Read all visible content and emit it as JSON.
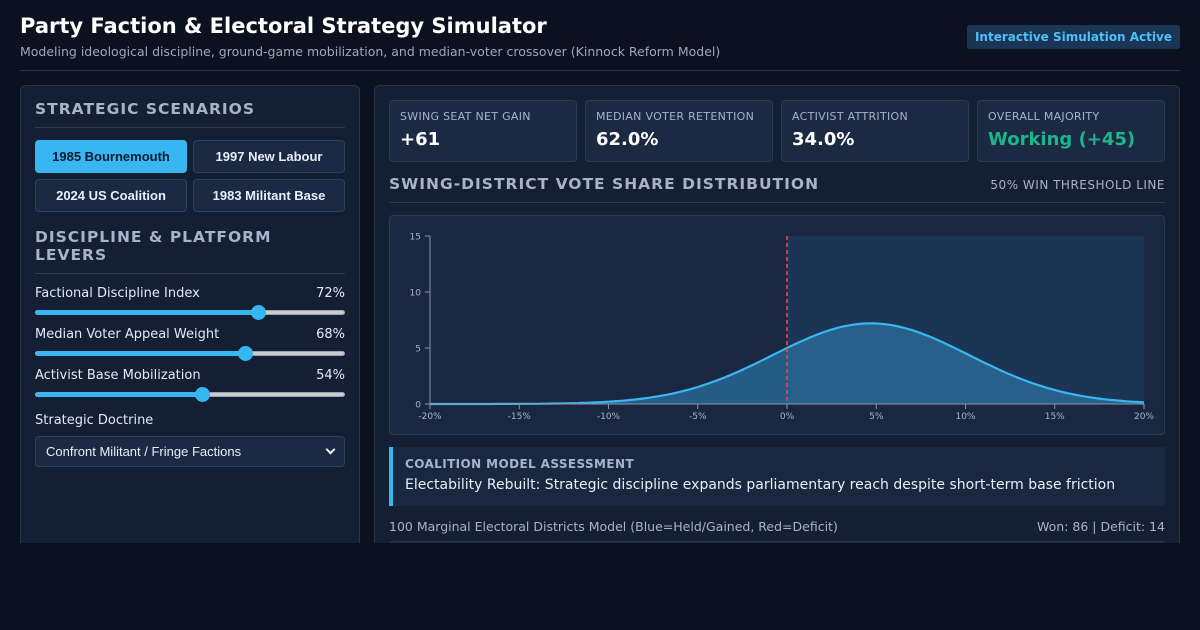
{
  "header": {
    "title": "Party Faction & Electoral Strategy Simulator",
    "subtitle": "Modeling ideological discipline, ground-game mobilization, and median-voter crossover (Kinnock Reform Model)",
    "badge": "Interactive Simulation Active"
  },
  "sidebar": {
    "scenarios_title": "STRATEGIC SCENARIOS",
    "scenarios": [
      {
        "label": "1985 Bournemouth",
        "active": true
      },
      {
        "label": "1997 New Labour",
        "active": false
      },
      {
        "label": "2024 US Coalition",
        "active": false
      },
      {
        "label": "1983 Militant Base",
        "active": false
      }
    ],
    "levers_title": "DISCIPLINE & PLATFORM LEVERS",
    "sliders": [
      {
        "label": "Factional Discipline Index",
        "value_text": "72%",
        "value": 72
      },
      {
        "label": "Median Voter Appeal Weight",
        "value_text": "68%",
        "value": 68
      },
      {
        "label": "Activist Base Mobilization",
        "value_text": "54%",
        "value": 54
      }
    ],
    "doctrine_label": "Strategic Doctrine",
    "doctrine_selected": "Confront Militant / Fringe Factions"
  },
  "stats": [
    {
      "label": "SWING SEAT NET GAIN",
      "value": "+61",
      "color": "#ffffff"
    },
    {
      "label": "MEDIAN VOTER RETENTION",
      "value": "62.0%",
      "color": "#ffffff"
    },
    {
      "label": "ACTIVIST ATTRITION",
      "value": "34.0%",
      "color": "#ffffff"
    },
    {
      "label": "OVERALL MAJORITY",
      "value": "Working (+45)",
      "color": "#1fb58b"
    }
  ],
  "chart_title": "SWING-DISTRICT VOTE SHARE DISTRIBUTION",
  "chart_note": "50% WIN THRESHOLD LINE",
  "chart_data": {
    "type": "area",
    "x_ticks": [
      "-20%",
      "-15%",
      "-10%",
      "-5%",
      "0%",
      "5%",
      "10%",
      "15%",
      "20%"
    ],
    "y_ticks": [
      "0",
      "5",
      "10",
      "15"
    ],
    "xlim": [
      -20,
      20
    ],
    "ylim": [
      0,
      15
    ],
    "threshold_x": 0,
    "distribution": {
      "mean": 4.7,
      "sd": 5.5,
      "peak": 7.2
    },
    "line_color": "#38b6f1",
    "threshold_color": "#e2485b"
  },
  "assessment": {
    "label": "COALITION MODEL ASSESSMENT",
    "text": "Electability Rebuilt: Strategic discipline expands parliamentary reach despite short-term base friction"
  },
  "districts": {
    "caption": "100 Marginal Electoral Districts Model (Blue=Held/Gained, Red=Deficit)",
    "summary": "Won: 86 | Deficit: 14"
  }
}
